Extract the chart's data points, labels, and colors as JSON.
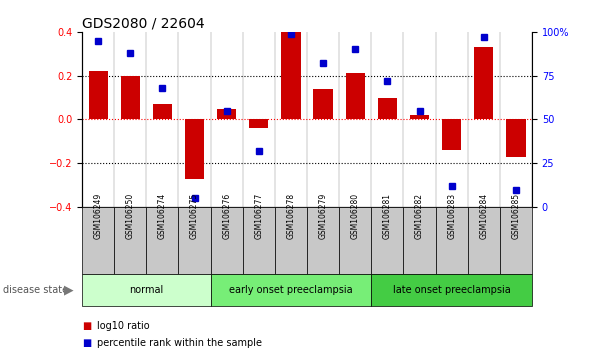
{
  "title": "GDS2080 / 22604",
  "samples": [
    "GSM106249",
    "GSM106250",
    "GSM106274",
    "GSM106275",
    "GSM106276",
    "GSM106277",
    "GSM106278",
    "GSM106279",
    "GSM106280",
    "GSM106281",
    "GSM106282",
    "GSM106283",
    "GSM106284",
    "GSM106285"
  ],
  "log10_ratio": [
    0.22,
    0.2,
    0.07,
    -0.27,
    0.05,
    -0.04,
    0.4,
    0.14,
    0.21,
    0.1,
    0.02,
    -0.14,
    0.33,
    -0.17
  ],
  "percentile_rank": [
    95,
    88,
    68,
    5,
    55,
    32,
    99,
    82,
    90,
    72,
    55,
    12,
    97,
    10
  ],
  "groups": [
    {
      "label": "normal",
      "start": 0,
      "end": 4,
      "color": "#ccffcc"
    },
    {
      "label": "early onset preeclampsia",
      "start": 4,
      "end": 9,
      "color": "#77ee77"
    },
    {
      "label": "late onset preeclampsia",
      "start": 9,
      "end": 14,
      "color": "#44cc44"
    }
  ],
  "bar_color": "#cc0000",
  "dot_color": "#0000cc",
  "ylim_left": [
    -0.4,
    0.4
  ],
  "ylim_right": [
    0,
    100
  ],
  "yticks_left": [
    -0.4,
    -0.2,
    0.0,
    0.2,
    0.4
  ],
  "yticks_right": [
    0,
    25,
    50,
    75,
    100
  ],
  "ytick_labels_right": [
    "0",
    "25",
    "50",
    "75",
    "100%"
  ],
  "legend_items": [
    {
      "label": "log10 ratio",
      "color": "#cc0000"
    },
    {
      "label": "percentile rank within the sample",
      "color": "#0000cc"
    }
  ],
  "disease_state_label": "disease state",
  "title_fontsize": 10,
  "tick_fontsize": 7,
  "sample_fontsize": 5.5,
  "group_fontsize": 7,
  "legend_fontsize": 7
}
